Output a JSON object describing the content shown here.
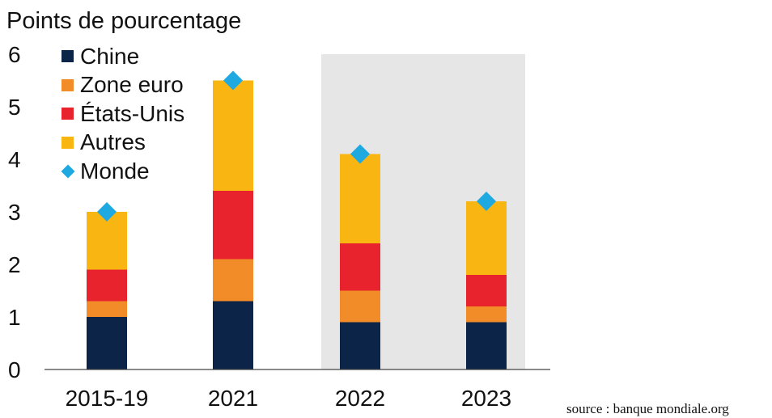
{
  "ylabel": "Points de pourcentage",
  "source": "source : banque mondiale.org",
  "legend": [
    {
      "label": "Chine",
      "color": "#0b2447",
      "marker": "square"
    },
    {
      "label": "Zone euro",
      "color": "#f28c28",
      "marker": "square"
    },
    {
      "label": "États-Unis",
      "color": "#e8232e",
      "marker": "square"
    },
    {
      "label": "Autres",
      "color": "#f9b612",
      "marker": "square"
    },
    {
      "label": "Monde",
      "color": "#1fa9e1",
      "marker": "diamond"
    }
  ],
  "chart_data": {
    "type": "bar",
    "stacked": true,
    "categories": [
      "2015-19",
      "2021",
      "2022",
      "2023"
    ],
    "series": [
      {
        "name": "Chine",
        "color": "#0b2447",
        "values": [
          1.0,
          1.3,
          0.9,
          0.9
        ]
      },
      {
        "name": "Zone euro",
        "color": "#f28c28",
        "values": [
          0.3,
          0.8,
          0.6,
          0.3
        ]
      },
      {
        "name": "États-Unis",
        "color": "#e8232e",
        "values": [
          0.6,
          1.3,
          0.9,
          0.6
        ]
      },
      {
        "name": "Autres",
        "color": "#f9b612",
        "values": [
          1.1,
          2.1,
          1.7,
          1.4
        ]
      }
    ],
    "markers": {
      "name": "Monde",
      "color": "#1fa9e1",
      "values": [
        3.0,
        5.5,
        4.1,
        3.2
      ]
    },
    "ylabel": "Points de pourcentage",
    "xlabel": "",
    "ylim": [
      0,
      6
    ],
    "yticks": [
      0,
      1,
      2,
      3,
      4,
      5,
      6
    ],
    "shaded_categories": [
      "2022",
      "2023"
    ],
    "shade_color": "#e6e6e6",
    "grid": false,
    "legend_position": "top-left"
  }
}
